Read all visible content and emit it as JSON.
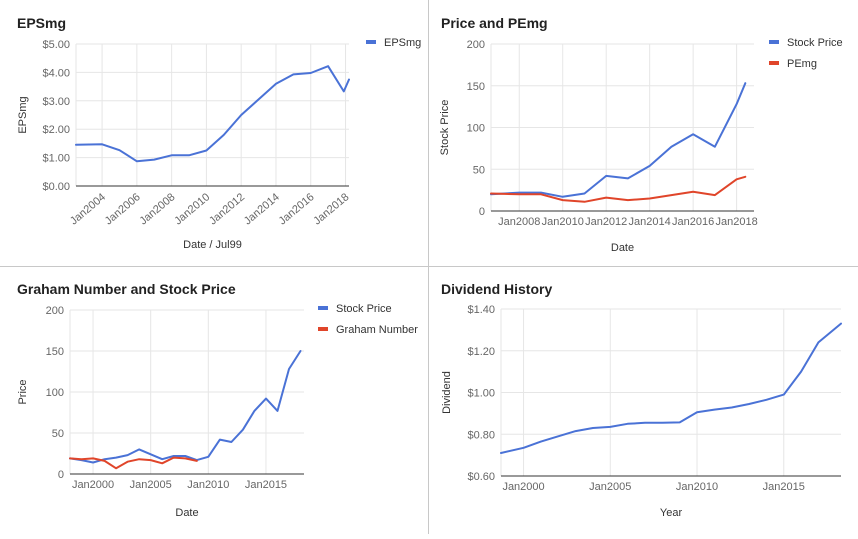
{
  "colors": {
    "series_blue": "#4a72d6",
    "series_red": "#e0452a",
    "grid": "#e6e6e6",
    "axis": "#333333",
    "tick_text": "#666666",
    "title_text": "#222222",
    "divider": "#c8c8c8"
  },
  "charts": [
    {
      "id": "eps",
      "title": "EPSmg",
      "xlabel": "Date / Jul99",
      "ylabel": "EPSmg",
      "type": "line",
      "legend": [
        {
          "label": "EPSmg",
          "color": "#4a72d6"
        }
      ]
    },
    {
      "id": "pe",
      "title": "Price and PEmg",
      "xlabel": "Date",
      "ylabel": "Stock Price",
      "type": "line",
      "legend": [
        {
          "label": "Stock Price",
          "color": "#4a72d6"
        },
        {
          "label": "PEmg",
          "color": "#e0452a"
        }
      ]
    },
    {
      "id": "graham",
      "title": "Graham Number and Stock Price",
      "xlabel": "Date",
      "ylabel": "Price",
      "type": "line",
      "legend": [
        {
          "label": "Stock Price",
          "color": "#4a72d6"
        },
        {
          "label": "Graham Number",
          "color": "#e0452a"
        }
      ]
    },
    {
      "id": "dividend",
      "title": "Dividend History",
      "xlabel": "Year",
      "ylabel": "Dividend",
      "type": "line",
      "legend": []
    }
  ],
  "chart_data": [
    {
      "type": "line",
      "title": "EPSmg",
      "xlabel": "Date / Jul99",
      "ylabel": "EPSmg",
      "xlim": [
        2002.5,
        2018.2
      ],
      "ylim": [
        0,
        5
      ],
      "grid": true,
      "legend_position": "top-right",
      "x_ticks": [
        2004,
        2006,
        2008,
        2010,
        2012,
        2014,
        2016,
        2018
      ],
      "x_tick_labels": [
        "Jan2004",
        "Jan2006",
        "Jan2008",
        "Jan2010",
        "Jan2012",
        "Jan2014",
        "Jan2016",
        "Jan2018"
      ],
      "y_ticks": [
        0,
        1,
        2,
        3,
        4,
        5
      ],
      "y_tick_labels": [
        "$0.00",
        "$1.00",
        "$2.00",
        "$3.00",
        "$4.00",
        "$5.00"
      ],
      "series": [
        {
          "name": "EPSmg",
          "color": "#4a72d6",
          "x": [
            2002.5,
            2004,
            2005,
            2006,
            2007,
            2008,
            2009,
            2010,
            2011,
            2012,
            2013,
            2014,
            2015,
            2016,
            2017,
            2017.9,
            2018.2
          ],
          "y": [
            1.45,
            1.47,
            1.26,
            0.87,
            0.93,
            1.08,
            1.08,
            1.25,
            1.8,
            2.5,
            3.05,
            3.6,
            3.93,
            3.98,
            4.22,
            3.33,
            3.75
          ]
        }
      ]
    },
    {
      "type": "line",
      "title": "Price and PEmg",
      "xlabel": "Date",
      "ylabel": "Stock Price",
      "xlim": [
        2006.7,
        2018.8
      ],
      "ylim": [
        0,
        200
      ],
      "grid": true,
      "legend_position": "top-right",
      "x_ticks": [
        2008,
        2010,
        2012,
        2014,
        2016,
        2018
      ],
      "x_tick_labels": [
        "Jan2008",
        "Jan2010",
        "Jan2012",
        "Jan2014",
        "Jan2016",
        "Jan2018"
      ],
      "y_ticks": [
        0,
        50,
        100,
        150,
        200
      ],
      "y_tick_labels": [
        "0",
        "50",
        "100",
        "150",
        "200"
      ],
      "series": [
        {
          "name": "Stock Price",
          "color": "#4a72d6",
          "x": [
            2006.7,
            2008,
            2009,
            2010,
            2011,
            2012,
            2013,
            2014,
            2015,
            2016,
            2017,
            2018,
            2018.4
          ],
          "y": [
            20,
            22,
            22,
            17,
            21,
            42,
            39,
            54,
            77,
            92,
            77,
            128,
            153
          ]
        },
        {
          "name": "PEmg",
          "color": "#e0452a",
          "x": [
            2006.7,
            2008,
            2009,
            2010,
            2011,
            2012,
            2013,
            2014,
            2015,
            2016,
            2017,
            2018,
            2018.4
          ],
          "y": [
            21,
            20,
            20,
            13,
            11,
            16,
            13,
            15,
            19,
            23,
            19,
            38,
            41
          ]
        }
      ]
    },
    {
      "type": "line",
      "title": "Graham Number and Stock Price",
      "xlabel": "Date",
      "ylabel": "Price",
      "xlim": [
        1998,
        2018.3
      ],
      "ylim": [
        0,
        200
      ],
      "grid": true,
      "legend_position": "top-right",
      "x_ticks": [
        2000,
        2005,
        2010,
        2015
      ],
      "x_tick_labels": [
        "Jan2000",
        "Jan2005",
        "Jan2010",
        "Jan2015"
      ],
      "y_ticks": [
        0,
        50,
        100,
        150,
        200
      ],
      "y_tick_labels": [
        "0",
        "50",
        "100",
        "150",
        "200"
      ],
      "series": [
        {
          "name": "Stock Price",
          "color": "#4a72d6",
          "x": [
            1998,
            1999,
            2000,
            2001,
            2002,
            2003,
            2004,
            2005,
            2006,
            2007,
            2008,
            2009,
            2010,
            2011,
            2012,
            2013,
            2014,
            2015,
            2016,
            2017,
            2018
          ],
          "y": [
            19,
            17,
            14,
            18,
            20,
            23,
            30,
            24,
            18,
            22,
            22,
            17,
            21,
            42,
            39,
            54,
            77,
            92,
            77,
            128,
            150
          ]
        },
        {
          "name": "Graham Number",
          "color": "#e0452a",
          "x": [
            1998,
            1999,
            2000,
            2001,
            2002,
            2003,
            2004,
            2005,
            2006,
            2007,
            2008,
            2009
          ],
          "y": [
            19,
            18,
            19,
            16,
            7,
            15,
            18,
            17,
            13,
            20,
            19,
            16
          ]
        }
      ]
    },
    {
      "type": "line",
      "title": "Dividend History",
      "xlabel": "Year",
      "ylabel": "Dividend",
      "xlim": [
        1998.7,
        2018.3
      ],
      "ylim": [
        0.6,
        1.4
      ],
      "grid": true,
      "legend_position": "none",
      "x_ticks": [
        2000,
        2005,
        2010,
        2015
      ],
      "x_tick_labels": [
        "Jan2000",
        "Jan2005",
        "Jan2010",
        "Jan2015"
      ],
      "y_ticks": [
        0.6,
        0.8,
        1.0,
        1.2,
        1.4
      ],
      "y_tick_labels": [
        "$0.60",
        "$0.80",
        "$1.00",
        "$1.20",
        "$1.40"
      ],
      "series": [
        {
          "color": "#4a72d6",
          "x": [
            1998.7,
            2000,
            2001,
            2002,
            2003,
            2004,
            2005,
            2006,
            2007,
            2008,
            2009,
            2010,
            2011,
            2012,
            2013,
            2014,
            2015,
            2016,
            2017,
            2018.3
          ],
          "y": [
            0.71,
            0.735,
            0.765,
            0.79,
            0.815,
            0.83,
            0.835,
            0.85,
            0.855,
            0.855,
            0.857,
            0.905,
            0.918,
            0.928,
            0.945,
            0.965,
            0.99,
            1.1,
            1.24,
            1.33
          ]
        }
      ]
    }
  ]
}
